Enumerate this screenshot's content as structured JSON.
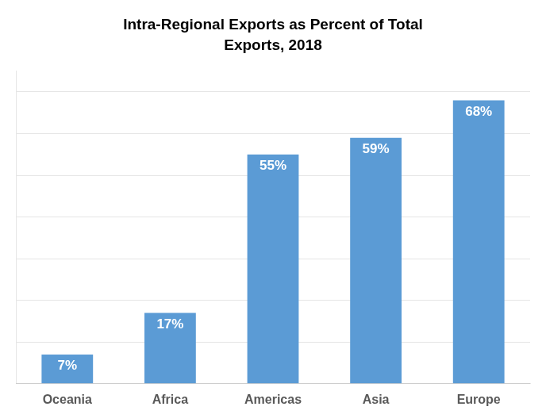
{
  "chart_data": {
    "type": "bar",
    "title": "Intra-Regional Exports as Percent of Total",
    "subtitle": "Exports, 2018",
    "categories": [
      "Oceania",
      "Africa",
      "Americas",
      "Asia",
      "Europe"
    ],
    "values": [
      7,
      17,
      55,
      59,
      68
    ],
    "value_labels": [
      "7%",
      "17%",
      "55%",
      "59%",
      "68%"
    ],
    "data_labels": true,
    "color": "#5B9BD5",
    "ylim": [
      0,
      75
    ],
    "yticks": [
      0,
      10,
      20,
      30,
      40,
      50,
      60,
      70
    ],
    "grid": true,
    "tick_labels": "x"
  }
}
